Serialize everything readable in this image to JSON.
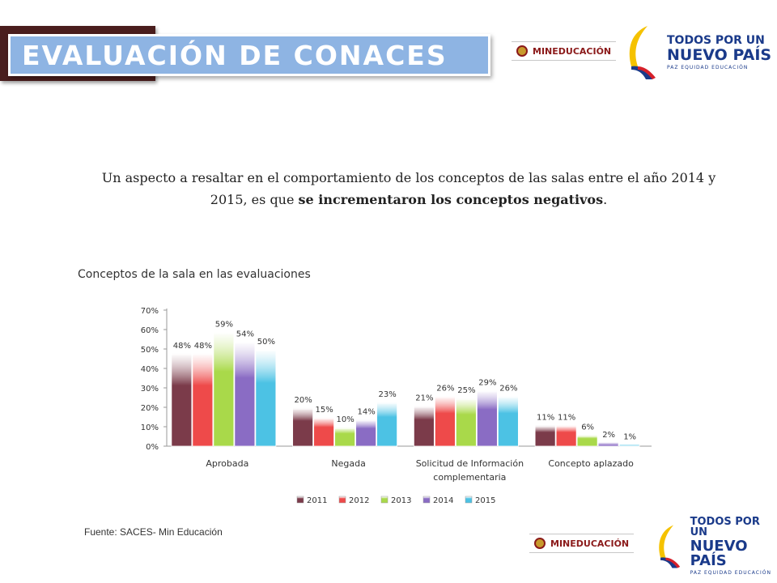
{
  "header": {
    "title": "EVALUACIÓN DE CONACES"
  },
  "logos": {
    "ministry": "MINEDUCACIÓN",
    "tagline_line1": "TODOS POR UN",
    "tagline_line2": "NUEVO PAÍS",
    "tagline_line3": "PAZ  EQUIDAD  EDUCACIÓN"
  },
  "intro": {
    "text_before": "Un aspecto a resaltar en el comportamiento de los conceptos de las salas entre el año 2014 y 2015, es que ",
    "text_bold": "se incrementaron los conceptos negativos",
    "text_after": "."
  },
  "chart_heading": "Conceptos de la sala en las evaluaciones",
  "source": "Fuente: SACES- Min Educación",
  "colors": {
    "title_bar": "#8eb4e3",
    "title_shadow": "#4a1e1e"
  },
  "chart_data": {
    "type": "bar",
    "categories": [
      "Aprobada",
      "Negada",
      "Solicitud de Información complementaria",
      "Concepto aplazado"
    ],
    "category_lines": [
      [
        "Aprobada"
      ],
      [
        "Negada"
      ],
      [
        "Solicitud de Información",
        "complementaria"
      ],
      [
        "Concepto aplazado"
      ]
    ],
    "series": [
      {
        "name": "2011",
        "values": [
          48,
          20,
          21,
          11
        ],
        "color": "#7b3b4a"
      },
      {
        "name": "2012",
        "values": [
          48,
          15,
          26,
          11
        ],
        "color": "#ee4a4a"
      },
      {
        "name": "2013",
        "values": [
          59,
          10,
          25,
          6
        ],
        "color": "#a9d94a"
      },
      {
        "name": "2014",
        "values": [
          54,
          14,
          29,
          2
        ],
        "color": "#8a6cc4"
      },
      {
        "name": "2015",
        "values": [
          50,
          23,
          26,
          1
        ],
        "color": "#4cc2e4"
      }
    ],
    "y_ticks": [
      "0%",
      "10%",
      "20%",
      "30%",
      "40%",
      "50%",
      "60%",
      "70%"
    ],
    "ylim": [
      0,
      70
    ],
    "value_suffix": "%",
    "legend_position": "bottom",
    "grid": false
  }
}
